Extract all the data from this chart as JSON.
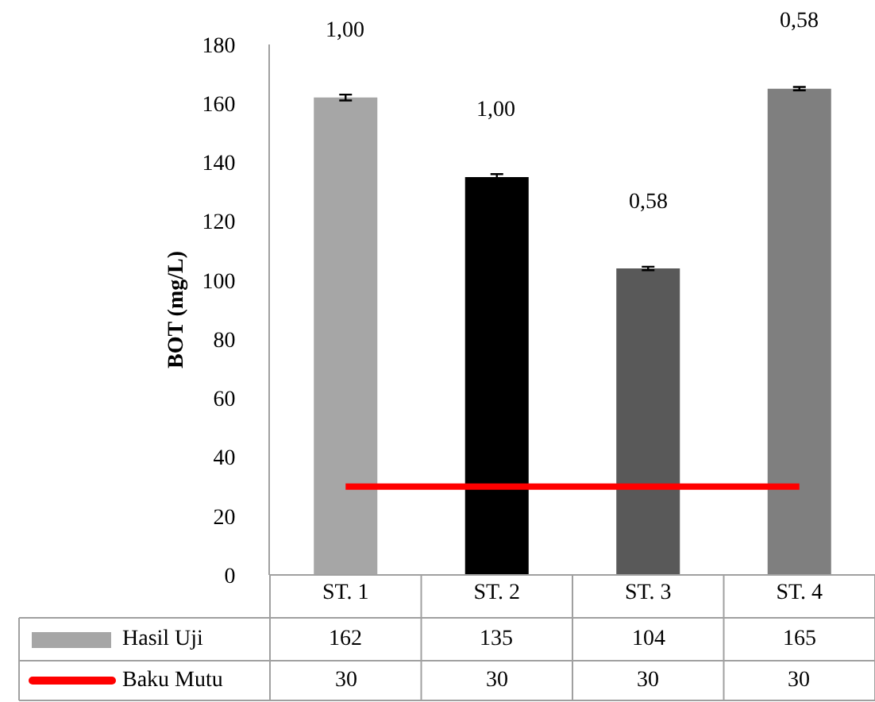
{
  "chart_data": {
    "type": "bar",
    "ylabel": "BOT (mg/L)",
    "categories": [
      "ST. 1",
      "ST. 2",
      "ST. 3",
      "ST. 4"
    ],
    "series": [
      {
        "name": "Hasil Uji",
        "colors": [
          "#a6a6a6",
          "#000000",
          "#595959",
          "#7f7f7f"
        ],
        "values": [
          162,
          135,
          104,
          165
        ],
        "errors": [
          1,
          1,
          0.58,
          0.58
        ]
      },
      {
        "name": "Baku Mutu",
        "type": "line",
        "color": "#ff0000",
        "values": [
          30,
          30,
          30,
          30
        ]
      }
    ],
    "annotations": [
      {
        "text": "1,00",
        "x": "ST. 1",
        "y": 162
      },
      {
        "text": "1,00",
        "x": "ST. 2",
        "y": 135
      },
      {
        "text": "0,58",
        "x": "ST. 3",
        "y": 104
      },
      {
        "text": "0,58",
        "x": "ST. 4",
        "y": 165
      }
    ],
    "ylim": [
      0,
      180
    ],
    "yticks": [
      0,
      20,
      40,
      60,
      80,
      100,
      120,
      140,
      160,
      180
    ],
    "grid": false,
    "legend": "bottom",
    "data_labels": true
  }
}
